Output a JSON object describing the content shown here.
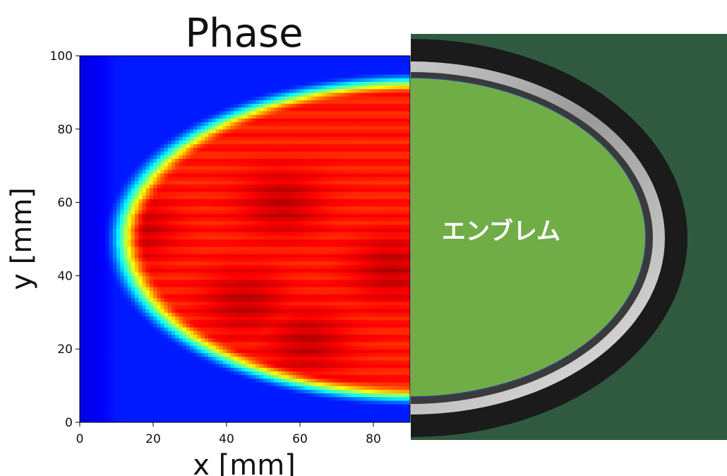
{
  "chart_data": {
    "type": "heatmap",
    "title": "Phase",
    "xlabel": "x [mm]",
    "ylabel": "y [mm]",
    "xlim": [
      0,
      90
    ],
    "ylim": [
      0,
      100
    ],
    "xticks": [
      0,
      20,
      40,
      60,
      80
    ],
    "yticks": [
      0,
      20,
      40,
      60,
      80,
      100
    ],
    "colormap": "jet",
    "grid": false,
    "description_values": {
      "background_region_level": 0.15,
      "target_region_level": 0.85,
      "hotspot_centers": [
        [
          15,
          53
        ],
        [
          62,
          22
        ],
        [
          45,
          33
        ],
        [
          55,
          60
        ],
        [
          85,
          42
        ]
      ]
    }
  },
  "photo": {
    "label": "エンブレム",
    "background_color": "#2f5a3f",
    "emblem_fill": "#70ad47",
    "emblem_border": "#2f3f8f",
    "rim_color": "#c9c9c9",
    "bezel_color": "#1b1b1b"
  }
}
